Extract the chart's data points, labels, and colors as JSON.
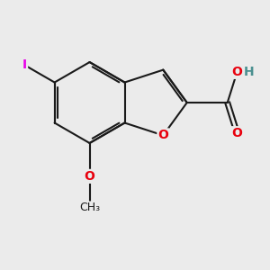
{
  "background_color": "#ebebeb",
  "bond_color": "#1a1a1a",
  "bond_width": 1.5,
  "atom_colors": {
    "O": "#e8000d",
    "I": "#e800e8",
    "C": "#1a1a1a",
    "H": "#4a9090"
  },
  "font_size_atom": 10,
  "font_size_H": 10,
  "font_size_CH3": 9
}
